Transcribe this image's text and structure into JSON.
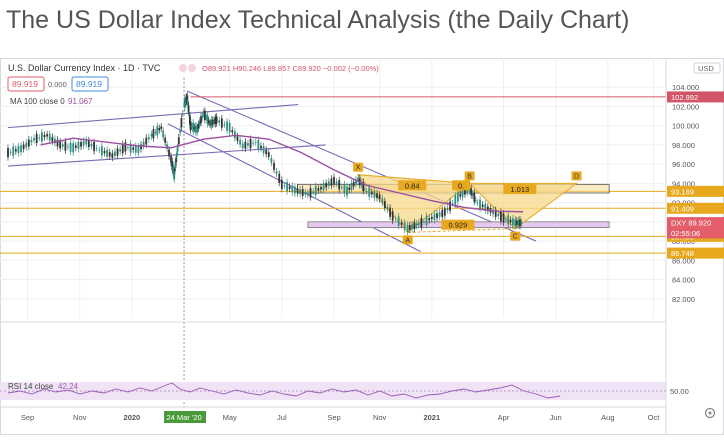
{
  "page": {
    "title": "The US Dollar Index Technical Analysis (the Daily Chart)"
  },
  "header": {
    "symbol": "U.S. Dollar Currency Index · 1D · TVC",
    "ohlc": "O89.921  H90.246  L89.857  C89.920  −0.002 (−0.00%)",
    "sell_price": "89.919",
    "spread": "0.000",
    "buy_price": "89.919",
    "ma_label": "MA 100 close 0",
    "ma_value": "91.067",
    "currency": "USD"
  },
  "rsi": {
    "label": "RSI 14 close",
    "value": "42.24",
    "level_label": "50.00"
  },
  "colors": {
    "candle_up": "#2f8f83",
    "candle_down": "#333333",
    "ma": "#9b4ea0",
    "channel": "#7e67b5",
    "support": "#e8a81e",
    "pattern_fill": "#f7d88b",
    "price_badge": "#e35d6a",
    "rsi_line": "#9b59b6",
    "rsi_band": "#efe3f5",
    "highlight_date": "#4a9a3a"
  },
  "chart_data": {
    "type": "line",
    "title": "",
    "xlabel": "",
    "ylabel": "",
    "ylim": [
      80,
      106
    ],
    "x_ticks": [
      "Sep",
      "Nov",
      "2020",
      "24 Mar '20",
      "May",
      "Jul",
      "Sep",
      "Nov",
      "2021",
      "Apr",
      "Jun",
      "Aug",
      "Oct"
    ],
    "y_ticks": [
      "104.000",
      "102.000",
      "100.000",
      "98.000",
      "96.000",
      "94.000",
      "92.000",
      "90.000",
      "88.000",
      "86.000",
      "84.000",
      "82.000"
    ],
    "price_labels": [
      {
        "label": "102.992",
        "value": 102.992,
        "color": "#d2566a"
      },
      {
        "label": "93.169",
        "value": 93.169,
        "color": "#e8a81e"
      },
      {
        "label": "91.409",
        "value": 91.409,
        "color": "#e8a81e"
      },
      {
        "label": "88.493",
        "value": 88.493,
        "color": "#e8a81e"
      },
      {
        "label": "86.748",
        "value": 86.748,
        "color": "#e8a81e"
      },
      {
        "label": "DXY",
        "value": 89.92,
        "color": "#e35d6a",
        "text": "DXY  89.920"
      },
      {
        "label": "02:55:06",
        "value": 88.85,
        "color": "#e35d6a"
      }
    ],
    "pattern_points": [
      {
        "label": "X",
        "t": 0.537,
        "value": 94.9
      },
      {
        "label": "A",
        "t": 0.613,
        "value": 88.9
      },
      {
        "label": "B",
        "t": 0.708,
        "value": 94.0
      },
      {
        "label": "C",
        "t": 0.778,
        "value": 89.3
      },
      {
        "label": "D",
        "t": 0.872,
        "value": 94.0
      }
    ],
    "pattern_ratios": [
      {
        "label": "0.84",
        "t": 0.62,
        "value": 93.7
      },
      {
        "label": "0.",
        "t": 0.695,
        "value": 93.7
      },
      {
        "label": "0.929",
        "t": 0.69,
        "value": 89.6
      },
      {
        "label": "1.013",
        "t": 0.785,
        "value": 93.3
      }
    ],
    "series": [
      {
        "name": "DXY",
        "points": [
          [
            0,
            97.2
          ],
          [
            0.02,
            97.6
          ],
          [
            0.04,
            98.6
          ],
          [
            0.06,
            99.0
          ],
          [
            0.08,
            98.0
          ],
          [
            0.1,
            97.7
          ],
          [
            0.12,
            98.3
          ],
          [
            0.14,
            97.5
          ],
          [
            0.16,
            96.9
          ],
          [
            0.18,
            97.8
          ],
          [
            0.2,
            97.5
          ],
          [
            0.22,
            99.0
          ],
          [
            0.235,
            99.8
          ],
          [
            0.25,
            96.5
          ],
          [
            0.255,
            94.9
          ],
          [
            0.26,
            97.5
          ],
          [
            0.27,
            102.2
          ],
          [
            0.275,
            102.9
          ],
          [
            0.28,
            100.0
          ],
          [
            0.29,
            99.6
          ],
          [
            0.3,
            101.3
          ],
          [
            0.31,
            100.2
          ],
          [
            0.32,
            100.6
          ],
          [
            0.34,
            99.8
          ],
          [
            0.36,
            97.9
          ],
          [
            0.38,
            98.3
          ],
          [
            0.4,
            97.0
          ],
          [
            0.42,
            93.9
          ],
          [
            0.44,
            93.3
          ],
          [
            0.46,
            92.9
          ],
          [
            0.48,
            93.5
          ],
          [
            0.5,
            94.3
          ],
          [
            0.52,
            93.2
          ],
          [
            0.537,
            94.4
          ],
          [
            0.55,
            93.2
          ],
          [
            0.57,
            92.6
          ],
          [
            0.59,
            90.6
          ],
          [
            0.613,
            89.3
          ],
          [
            0.63,
            89.8
          ],
          [
            0.65,
            90.4
          ],
          [
            0.67,
            91.0
          ],
          [
            0.69,
            92.6
          ],
          [
            0.708,
            93.4
          ],
          [
            0.72,
            92.0
          ],
          [
            0.74,
            91.2
          ],
          [
            0.76,
            90.4
          ],
          [
            0.778,
            89.9
          ],
          [
            0.79,
            89.9
          ]
        ]
      },
      {
        "name": "MA 100 close 0",
        "points": [
          [
            0.05,
            98.0
          ],
          [
            0.1,
            98.7
          ],
          [
            0.15,
            98.3
          ],
          [
            0.2,
            97.9
          ],
          [
            0.25,
            97.7
          ],
          [
            0.3,
            98.6
          ],
          [
            0.35,
            99.0
          ],
          [
            0.4,
            98.6
          ],
          [
            0.45,
            97.2
          ],
          [
            0.5,
            95.4
          ],
          [
            0.55,
            93.8
          ],
          [
            0.6,
            93.0
          ],
          [
            0.65,
            92.2
          ],
          [
            0.7,
            91.5
          ],
          [
            0.75,
            91.1
          ],
          [
            0.79,
            91.05
          ]
        ]
      }
    ]
  }
}
